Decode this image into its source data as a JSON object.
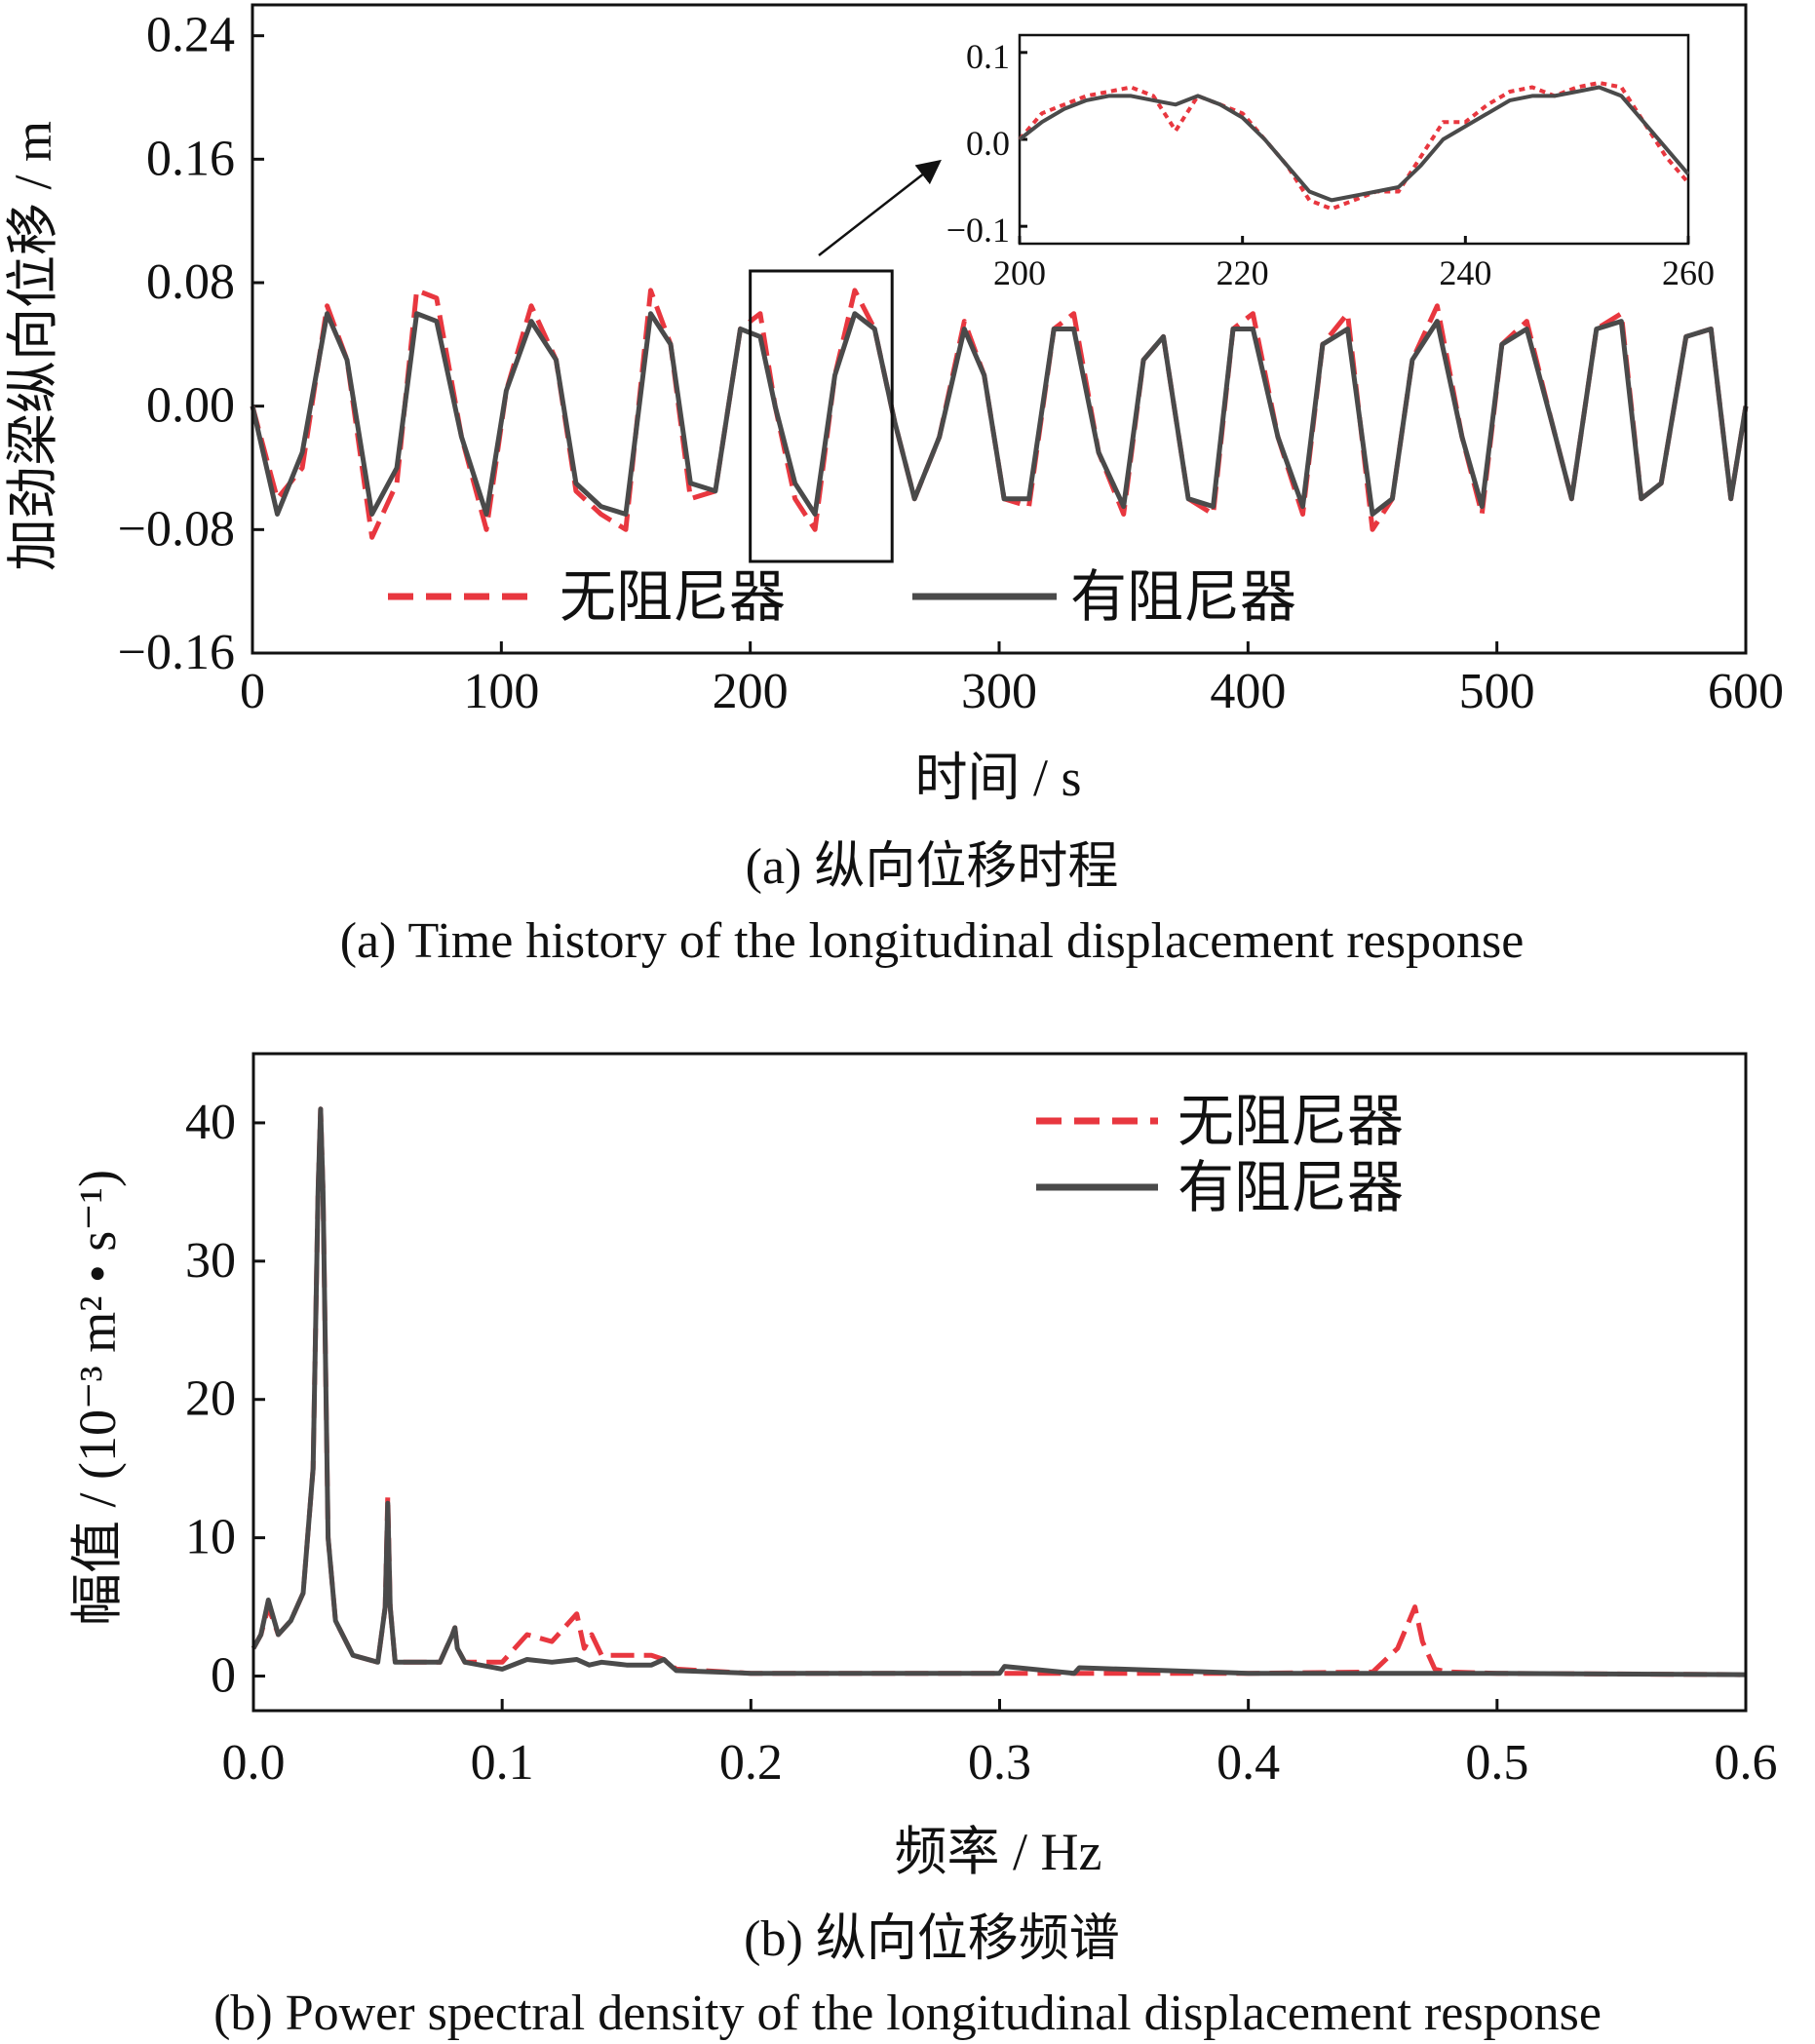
{
  "chart_data": [
    {
      "id": "a",
      "type": "line",
      "xlabel": "时间 / s",
      "ylabel": "加劲梁纵向位移 / m",
      "xlim": [
        0,
        600
      ],
      "ylim": [
        -0.16,
        0.26
      ],
      "xticks": [
        "0",
        "100",
        "200",
        "300",
        "400",
        "500",
        "600"
      ],
      "yticks": [
        "0.24",
        "0.16",
        "0.08",
        "0.00",
        "−0.08",
        "−0.16"
      ],
      "caption_zh": "(a) 纵向位移时程",
      "caption_en": "(a) Time history of the longitudinal displacement response",
      "legend_position": "bottom-center",
      "series": [
        {
          "name": "无阻尼器",
          "color": "#e8373f",
          "style": "dashed",
          "x": [
            0,
            10,
            20,
            30,
            38,
            48,
            58,
            66,
            74,
            84,
            94,
            102,
            112,
            122,
            130,
            140,
            150,
            160,
            168,
            176,
            186,
            196,
            204,
            210,
            218,
            226,
            234,
            242,
            250,
            258,
            266,
            276,
            286,
            294,
            302,
            312,
            322,
            330,
            340,
            350,
            358,
            366,
            376,
            386,
            394,
            402,
            412,
            422,
            430,
            440,
            450,
            458,
            466,
            476,
            486,
            494,
            502,
            512,
            522,
            530,
            540,
            550,
            558,
            566,
            576,
            586,
            594,
            600
          ],
          "y": [
            0.0,
            -0.06,
            -0.04,
            0.065,
            0.03,
            -0.085,
            -0.05,
            0.075,
            0.07,
            -0.02,
            -0.08,
            0.01,
            0.065,
            0.03,
            -0.055,
            -0.07,
            -0.08,
            0.075,
            0.04,
            -0.06,
            -0.055,
            0.05,
            0.06,
            0.0,
            -0.06,
            -0.08,
            0.02,
            0.075,
            0.05,
            -0.01,
            -0.06,
            -0.02,
            0.055,
            0.02,
            -0.06,
            -0.065,
            0.05,
            0.06,
            -0.03,
            -0.07,
            0.03,
            0.045,
            -0.06,
            -0.07,
            0.05,
            0.06,
            -0.02,
            -0.07,
            0.04,
            0.06,
            -0.08,
            -0.06,
            0.03,
            0.065,
            -0.02,
            -0.07,
            0.04,
            0.055,
            -0.01,
            -0.06,
            0.05,
            0.06,
            -0.06,
            -0.05,
            0.045,
            0.05,
            -0.06,
            0.0
          ]
        },
        {
          "name": "有阻尼器",
          "color": "#4a4a4a",
          "style": "solid",
          "x": [
            0,
            10,
            20,
            30,
            38,
            48,
            58,
            66,
            74,
            84,
            94,
            102,
            112,
            122,
            130,
            140,
            150,
            160,
            168,
            176,
            186,
            196,
            204,
            210,
            218,
            226,
            234,
            242,
            250,
            258,
            266,
            276,
            286,
            294,
            302,
            312,
            322,
            330,
            340,
            350,
            358,
            366,
            376,
            386,
            394,
            402,
            412,
            422,
            430,
            440,
            450,
            458,
            466,
            476,
            486,
            494,
            502,
            512,
            522,
            530,
            540,
            550,
            558,
            566,
            576,
            586,
            594,
            600
          ],
          "y": [
            0.0,
            -0.07,
            -0.03,
            0.06,
            0.03,
            -0.07,
            -0.04,
            0.06,
            0.055,
            -0.02,
            -0.07,
            0.01,
            0.055,
            0.03,
            -0.05,
            -0.065,
            -0.07,
            0.06,
            0.04,
            -0.05,
            -0.055,
            0.05,
            0.045,
            0.0,
            -0.05,
            -0.07,
            0.02,
            0.06,
            0.05,
            -0.01,
            -0.06,
            -0.02,
            0.05,
            0.02,
            -0.06,
            -0.06,
            0.05,
            0.05,
            -0.03,
            -0.065,
            0.03,
            0.045,
            -0.06,
            -0.065,
            0.05,
            0.05,
            -0.02,
            -0.065,
            0.04,
            0.05,
            -0.07,
            -0.06,
            0.03,
            0.055,
            -0.02,
            -0.065,
            0.04,
            0.05,
            -0.01,
            -0.06,
            0.05,
            0.055,
            -0.06,
            -0.05,
            0.045,
            0.05,
            -0.06,
            0.0
          ]
        }
      ],
      "highlight_box_x": [
        200,
        257
      ],
      "inset": {
        "xlim": [
          200,
          260
        ],
        "ylim": [
          -0.12,
          0.12
        ],
        "xticks": [
          "200",
          "220",
          "240",
          "260"
        ],
        "yticks": [
          "0.1",
          "0.0",
          "−0.1"
        ],
        "series": [
          {
            "name": "无阻尼器",
            "x": [
              200,
              202,
              204,
              206,
              208,
              210,
              212,
              214,
              216,
              218,
              220,
              222,
              224,
              226,
              228,
              230,
              232,
              234,
              236,
              238,
              240,
              242,
              244,
              246,
              248,
              250,
              252,
              254,
              256,
              258,
              260
            ],
            "y": [
              0.0,
              0.03,
              0.04,
              0.05,
              0.055,
              0.06,
              0.05,
              0.01,
              0.05,
              0.04,
              0.03,
              0.0,
              -0.03,
              -0.07,
              -0.08,
              -0.07,
              -0.06,
              -0.06,
              -0.02,
              0.02,
              0.02,
              0.04,
              0.055,
              0.06,
              0.05,
              0.06,
              0.065,
              0.06,
              0.02,
              -0.02,
              -0.05
            ]
          },
          {
            "name": "有阻尼器",
            "x": [
              200,
              202,
              204,
              206,
              208,
              210,
              212,
              214,
              216,
              218,
              220,
              222,
              224,
              226,
              228,
              230,
              232,
              234,
              236,
              238,
              240,
              242,
              244,
              246,
              248,
              250,
              252,
              254,
              256,
              258,
              260
            ],
            "y": [
              0.0,
              0.02,
              0.035,
              0.045,
              0.05,
              0.05,
              0.045,
              0.04,
              0.05,
              0.04,
              0.025,
              0.0,
              -0.03,
              -0.06,
              -0.07,
              -0.065,
              -0.06,
              -0.055,
              -0.03,
              0.0,
              0.015,
              0.03,
              0.045,
              0.05,
              0.05,
              0.055,
              0.06,
              0.05,
              0.02,
              -0.01,
              -0.04
            ]
          }
        ]
      }
    },
    {
      "id": "b",
      "type": "line",
      "xlabel": "频率 / Hz",
      "ylabel": "幅值 / (10⁻³ m² • s⁻¹)",
      "xlim": [
        0,
        0.6
      ],
      "ylim": [
        -2.5,
        45
      ],
      "xticks": [
        "0.0",
        "0.1",
        "0.2",
        "0.3",
        "0.4",
        "0.5",
        "0.6"
      ],
      "yticks": [
        "40",
        "30",
        "20",
        "10",
        "0"
      ],
      "caption_zh": "(b) 纵向位移频谱",
      "caption_en": "(b) Power spectral density of the longitudinal displacement response",
      "legend_position": "top-right",
      "series": [
        {
          "name": "无阻尼器",
          "color": "#e8373f",
          "style": "dashed",
          "x": [
            0.0,
            0.003,
            0.006,
            0.01,
            0.015,
            0.02,
            0.024,
            0.026,
            0.027,
            0.028,
            0.03,
            0.033,
            0.04,
            0.05,
            0.053,
            0.054,
            0.055,
            0.057,
            0.065,
            0.075,
            0.08,
            0.081,
            0.082,
            0.085,
            0.1,
            0.11,
            0.12,
            0.13,
            0.133,
            0.136,
            0.14,
            0.15,
            0.16,
            0.165,
            0.17,
            0.2,
            0.3,
            0.4,
            0.45,
            0.46,
            0.467,
            0.47,
            0.475,
            0.48,
            0.5,
            0.6
          ],
          "y": [
            2,
            3,
            5,
            3,
            4,
            6,
            15,
            35,
            41,
            35,
            10,
            4,
            1.5,
            1,
            5,
            13,
            5,
            1,
            1,
            1,
            3,
            3.5,
            2,
            1,
            1,
            3,
            2.5,
            4.5,
            2,
            3,
            1.5,
            1.5,
            1.5,
            1.2,
            0.5,
            0.2,
            0.2,
            0.2,
            0.3,
            2,
            5,
            2.5,
            0.5,
            0.3,
            0.2,
            0.1
          ]
        },
        {
          "name": "有阻尼器",
          "color": "#4a4a4a",
          "style": "solid",
          "x": [
            0.0,
            0.003,
            0.006,
            0.01,
            0.015,
            0.02,
            0.024,
            0.026,
            0.027,
            0.028,
            0.03,
            0.033,
            0.04,
            0.05,
            0.053,
            0.054,
            0.055,
            0.057,
            0.065,
            0.075,
            0.08,
            0.081,
            0.082,
            0.085,
            0.1,
            0.11,
            0.12,
            0.13,
            0.135,
            0.14,
            0.15,
            0.16,
            0.165,
            0.17,
            0.2,
            0.3,
            0.302,
            0.33,
            0.332,
            0.4,
            0.5,
            0.6
          ],
          "y": [
            2,
            3,
            5.5,
            3,
            4,
            6,
            15,
            35,
            41,
            35,
            10,
            4,
            1.5,
            1,
            5,
            12.5,
            5,
            1,
            1,
            1,
            3,
            3.5,
            2,
            1,
            0.5,
            1.2,
            1,
            1.2,
            0.8,
            1,
            0.8,
            0.8,
            1.2,
            0.4,
            0.2,
            0.2,
            0.7,
            0.2,
            0.6,
            0.2,
            0.2,
            0.1
          ]
        }
      ]
    }
  ]
}
